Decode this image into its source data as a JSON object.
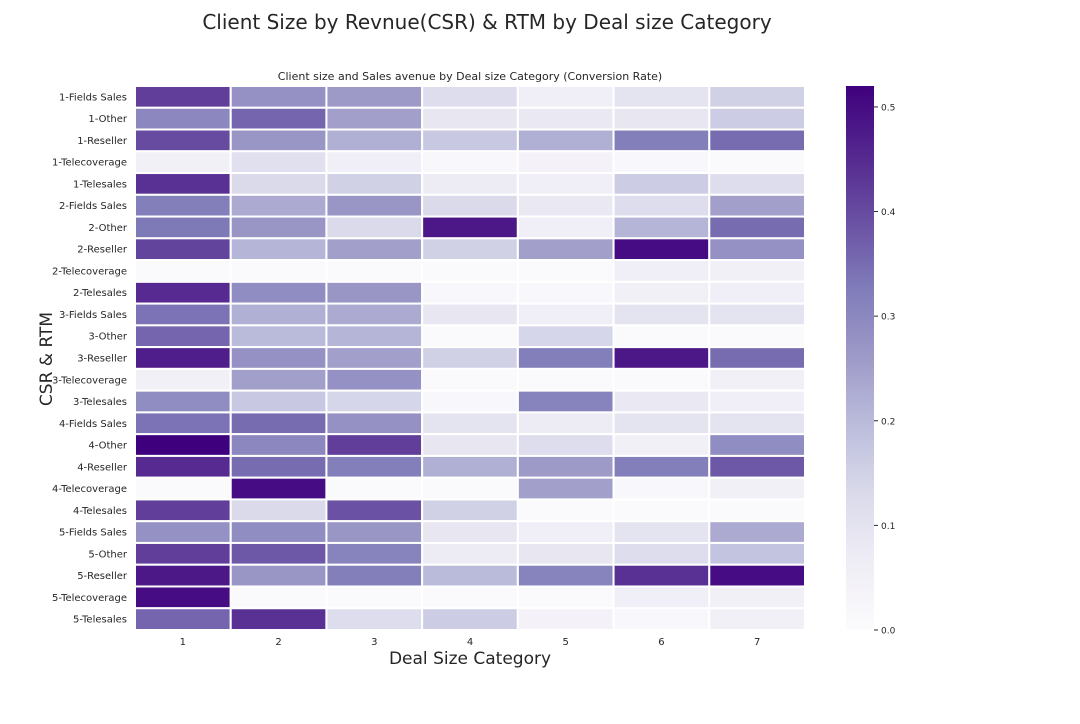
{
  "figure": {
    "suptitle": "Client Size by Revnue(CSR) & RTM by Deal size Category"
  },
  "chart_data": {
    "type": "heatmap",
    "title": "Client size and Sales avenue by Deal size Category (Conversion Rate)",
    "xlabel": "Deal Size Category",
    "ylabel": "CSR & RTM",
    "x_categories": [
      "1",
      "2",
      "3",
      "4",
      "5",
      "6",
      "7"
    ],
    "y_categories": [
      "1-Fields Sales",
      "1-Other",
      "1-Reseller",
      "1-Telecoverage",
      "1-Telesales",
      "2-Fields Sales",
      "2-Other",
      "2-Reseller",
      "2-Telecoverage",
      "2-Telesales",
      "3-Fields Sales",
      "3-Other",
      "3-Reseller",
      "3-Telecoverage",
      "3-Telesales",
      "4-Fields Sales",
      "4-Other",
      "4-Reseller",
      "4-Telecoverage",
      "4-Telesales",
      "5-Fields Sales",
      "5-Other",
      "5-Reseller",
      "5-Telecoverage",
      "5-Telesales"
    ],
    "values": [
      [
        0.42,
        0.28,
        0.26,
        0.12,
        0.06,
        0.1,
        0.15
      ],
      [
        0.3,
        0.36,
        0.25,
        0.09,
        0.08,
        0.09,
        0.16
      ],
      [
        0.4,
        0.27,
        0.22,
        0.17,
        0.22,
        0.32,
        0.35
      ],
      [
        0.05,
        0.11,
        0.06,
        0.02,
        0.04,
        0.02,
        0.01
      ],
      [
        0.44,
        0.13,
        0.15,
        0.07,
        0.06,
        0.16,
        0.12
      ],
      [
        0.32,
        0.23,
        0.27,
        0.13,
        0.08,
        0.12,
        0.25
      ],
      [
        0.33,
        0.27,
        0.13,
        0.48,
        0.06,
        0.21,
        0.35
      ],
      [
        0.41,
        0.21,
        0.25,
        0.15,
        0.25,
        0.5,
        0.28
      ],
      [
        0.01,
        0.01,
        0.01,
        0.01,
        0.01,
        0.06,
        0.05
      ],
      [
        0.45,
        0.29,
        0.27,
        0.02,
        0.02,
        0.05,
        0.06
      ],
      [
        0.34,
        0.22,
        0.23,
        0.09,
        0.06,
        0.1,
        0.1
      ],
      [
        0.36,
        0.2,
        0.21,
        0.01,
        0.14,
        0.01,
        0.01
      ],
      [
        0.47,
        0.28,
        0.25,
        0.15,
        0.32,
        0.48,
        0.35
      ],
      [
        0.05,
        0.25,
        0.28,
        0.01,
        0.01,
        0.01,
        0.05
      ],
      [
        0.29,
        0.17,
        0.14,
        0.02,
        0.31,
        0.08,
        0.06
      ],
      [
        0.34,
        0.35,
        0.28,
        0.1,
        0.07,
        0.1,
        0.1
      ],
      [
        0.52,
        0.3,
        0.42,
        0.09,
        0.12,
        0.05,
        0.29
      ],
      [
        0.45,
        0.35,
        0.32,
        0.22,
        0.26,
        0.32,
        0.38
      ],
      [
        0.01,
        0.5,
        0.01,
        0.01,
        0.25,
        0.02,
        0.05
      ],
      [
        0.42,
        0.13,
        0.39,
        0.15,
        0.01,
        0.01,
        0.01
      ],
      [
        0.28,
        0.29,
        0.27,
        0.09,
        0.06,
        0.1,
        0.23
      ],
      [
        0.42,
        0.38,
        0.31,
        0.07,
        0.09,
        0.12,
        0.18
      ],
      [
        0.48,
        0.27,
        0.32,
        0.2,
        0.31,
        0.44,
        0.5
      ],
      [
        0.5,
        0.01,
        0.01,
        0.01,
        0.01,
        0.06,
        0.05
      ],
      [
        0.36,
        0.44,
        0.12,
        0.16,
        0.04,
        0.02,
        0.05
      ]
    ],
    "colorbar": {
      "min": 0.0,
      "max": 0.52,
      "ticks": [
        0.0,
        0.1,
        0.2,
        0.3,
        0.4,
        0.5
      ],
      "tick_labels": [
        "0.0",
        "0.1",
        "0.2",
        "0.3",
        "0.4",
        "0.5"
      ]
    },
    "colormap": [
      "#fcfbfd",
      "#efedf5",
      "#dadaeb",
      "#bcbddc",
      "#9e9ac8",
      "#807dba",
      "#6a51a3",
      "#54278f",
      "#3f007d"
    ],
    "cell_border_color": "#ffffff"
  }
}
